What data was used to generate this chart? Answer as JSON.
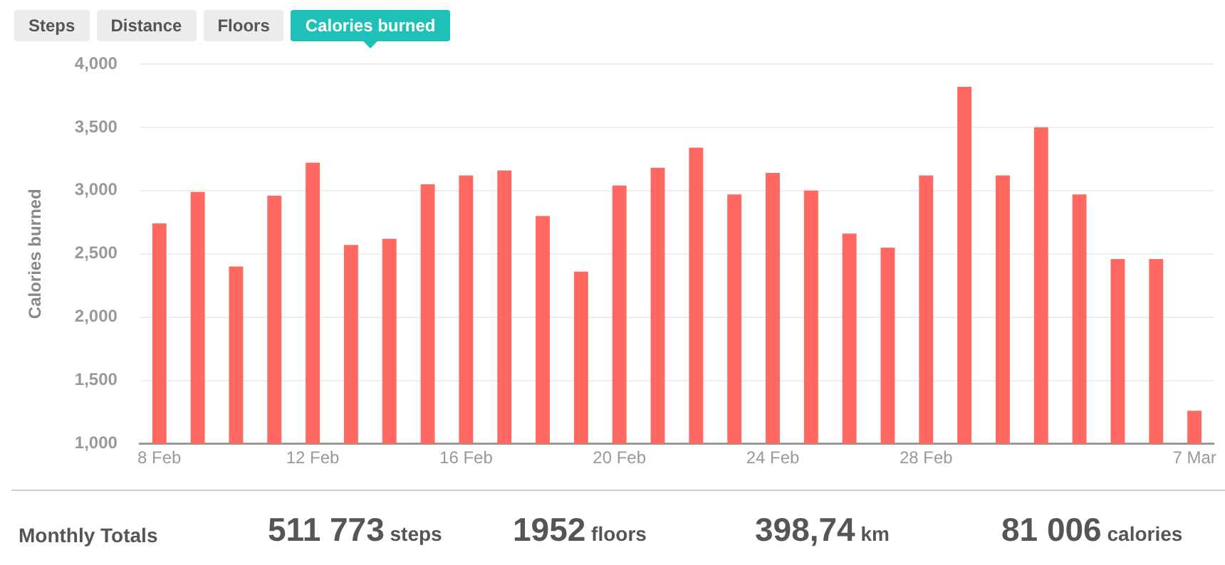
{
  "chart_data": {
    "type": "bar",
    "ylabel": "Calories burned",
    "categories": [
      "8 Feb",
      null,
      null,
      null,
      "12 Feb",
      null,
      null,
      null,
      "16 Feb",
      null,
      null,
      null,
      "20 Feb",
      null,
      null,
      null,
      "24 Feb",
      null,
      null,
      null,
      "28 Feb",
      null,
      null,
      null,
      null,
      null,
      null,
      "7 Mar"
    ],
    "values": [
      2740,
      2990,
      2400,
      2960,
      3220,
      2570,
      2620,
      3050,
      3120,
      3160,
      2800,
      2360,
      3040,
      3180,
      3340,
      2970,
      3140,
      3000,
      2660,
      2550,
      3120,
      3820,
      3120,
      3500,
      2970,
      2460,
      2460,
      1260
    ],
    "color": "#ff6961",
    "ylim": [
      1000,
      4000
    ],
    "yticks": [
      {
        "value": 1000,
        "label": "1,000"
      },
      {
        "value": 1500,
        "label": "1,500"
      },
      {
        "value": 2000,
        "label": "2,000"
      },
      {
        "value": 2500,
        "label": "2,500"
      },
      {
        "value": 3000,
        "label": "3,000"
      },
      {
        "value": 3500,
        "label": "3,500"
      },
      {
        "value": 4000,
        "label": "4,000"
      }
    ],
    "grid": "y",
    "annotations": [
      "Steps",
      "Distance",
      "Floors",
      "Calories burned",
      "Monthly Totals",
      "511 773 steps",
      "1952 floors",
      "398,74 km",
      "81 006 calories"
    ]
  }
}
